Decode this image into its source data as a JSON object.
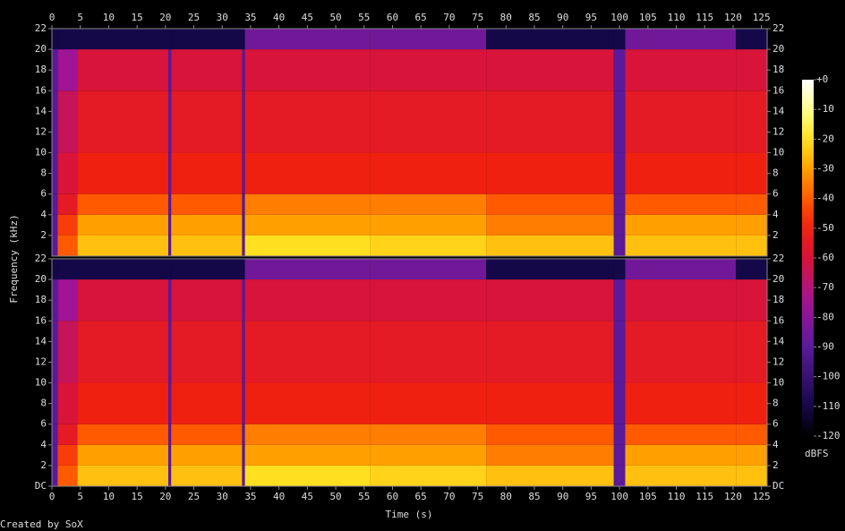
{
  "chart_data": [
    {
      "type": "heatmap",
      "ylabel": "Frequency (kHz)",
      "xlim": [
        0,
        126
      ],
      "xticks": [
        0,
        5,
        10,
        15,
        20,
        25,
        30,
        35,
        40,
        45,
        50,
        55,
        60,
        65,
        70,
        75,
        80,
        85,
        90,
        95,
        100,
        105,
        110,
        115,
        120,
        125
      ],
      "ylim": [
        0,
        22
      ],
      "yticks": [
        2,
        4,
        6,
        8,
        10,
        12,
        14,
        16,
        18,
        20,
        22
      ],
      "xbins": [
        0,
        1,
        4.5,
        20.5,
        21,
        33.5,
        34,
        56,
        76.5,
        99,
        101,
        120.5,
        126
      ],
      "ybins": [
        0,
        2,
        4,
        6,
        10,
        16,
        20,
        22
      ],
      "z": [
        [
          -90,
          -40,
          -25,
          -90,
          -25,
          -90,
          -20,
          -22,
          -25,
          -90,
          -25,
          -25
        ],
        [
          -90,
          -45,
          -30,
          -90,
          -30,
          -90,
          -30,
          -30,
          -35,
          -90,
          -30,
          -30
        ],
        [
          -90,
          -55,
          -40,
          -90,
          -40,
          -90,
          -35,
          -35,
          -40,
          -90,
          -40,
          -40
        ],
        [
          -90,
          -60,
          -50,
          -90,
          -50,
          -90,
          -50,
          -50,
          -50,
          -90,
          -50,
          -50
        ],
        [
          -90,
          -65,
          -55,
          -90,
          -55,
          -90,
          -55,
          -55,
          -55,
          -90,
          -55,
          -55
        ],
        [
          -90,
          -75,
          -60,
          -90,
          -60,
          -90,
          -60,
          -60,
          -60,
          -90,
          -60,
          -60
        ],
        [
          -110,
          -110,
          -110,
          -110,
          -110,
          -110,
          -85,
          -85,
          -110,
          -110,
          -85,
          -110
        ]
      ],
      "colorbar": {
        "zlim": [
          -120,
          0
        ],
        "ticks": [
          {
            "value": 0,
            "label": "+0"
          },
          -10,
          -20,
          -30,
          -40,
          -50,
          -60,
          -70,
          -80,
          -90,
          -100,
          -110,
          -120
        ],
        "label": "dBFS"
      }
    },
    {
      "type": "heatmap",
      "xlabel": "Time (s)",
      "xlim": [
        0,
        126
      ],
      "xticks": [
        0,
        5,
        10,
        15,
        20,
        25,
        30,
        35,
        40,
        45,
        50,
        55,
        60,
        65,
        70,
        75,
        80,
        85,
        90,
        95,
        100,
        105,
        110,
        115,
        120,
        125
      ],
      "ylim": [
        0,
        22
      ],
      "yticks": [
        {
          "value": 0,
          "label": "DC"
        },
        2,
        4,
        6,
        8,
        10,
        12,
        14,
        16,
        18,
        20,
        22
      ],
      "xbins": [
        0,
        1,
        4.5,
        20.5,
        21,
        33.5,
        34,
        56,
        76.5,
        99,
        101,
        120.5,
        126
      ],
      "ybins": [
        0,
        2,
        4,
        6,
        10,
        16,
        20,
        22
      ],
      "z": [
        [
          -90,
          -40,
          -25,
          -90,
          -25,
          -90,
          -20,
          -22,
          -25,
          -90,
          -25,
          -25
        ],
        [
          -90,
          -45,
          -30,
          -90,
          -30,
          -90,
          -30,
          -30,
          -35,
          -90,
          -30,
          -30
        ],
        [
          -90,
          -55,
          -40,
          -90,
          -40,
          -90,
          -35,
          -35,
          -40,
          -90,
          -40,
          -40
        ],
        [
          -90,
          -60,
          -50,
          -90,
          -50,
          -90,
          -50,
          -50,
          -50,
          -90,
          -50,
          -50
        ],
        [
          -90,
          -65,
          -55,
          -90,
          -55,
          -90,
          -55,
          -55,
          -55,
          -90,
          -55,
          -55
        ],
        [
          -90,
          -75,
          -60,
          -90,
          -60,
          -90,
          -60,
          -60,
          -60,
          -90,
          -60,
          -60
        ],
        [
          -110,
          -110,
          -110,
          -110,
          -110,
          -110,
          -85,
          -85,
          -110,
          -110,
          -85,
          -110
        ]
      ]
    }
  ],
  "footer": "Created by SoX"
}
